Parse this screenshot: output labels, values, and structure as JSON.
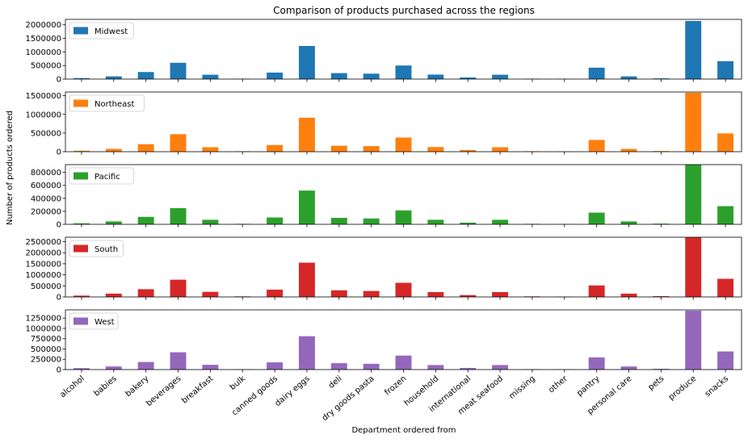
{
  "chart_data": {
    "type": "bar",
    "title": "Comparison of products purchased across the regions",
    "xlabel": "Department ordered from",
    "ylabel": "Number of products ordered",
    "legend_position": "top-left",
    "grid": false,
    "categories": [
      "alcohol",
      "babies",
      "bakery",
      "beverages",
      "breakfast",
      "bulk",
      "canned goods",
      "dairy eggs",
      "deli",
      "dry goods pasta",
      "frozen",
      "household",
      "international",
      "meat seafood",
      "missing",
      "other",
      "pantry",
      "personal care",
      "pets",
      "produce",
      "snacks"
    ],
    "series": [
      {
        "name": "Midwest",
        "color": "#1f77b4",
        "ylim": [
          0,
          2200000
        ],
        "yticks": [
          0,
          500000,
          1000000,
          1500000,
          2000000
        ],
        "values": [
          35000,
          100000,
          260000,
          600000,
          160000,
          15000,
          240000,
          1220000,
          220000,
          200000,
          500000,
          165000,
          60000,
          160000,
          15000,
          8000,
          420000,
          100000,
          25000,
          2140000,
          660000
        ]
      },
      {
        "name": "Northeast",
        "color": "#ff7f0e",
        "ylim": [
          0,
          1600000
        ],
        "yticks": [
          0,
          500000,
          1000000,
          1500000
        ],
        "values": [
          26000,
          75000,
          200000,
          470000,
          120000,
          12000,
          180000,
          910000,
          160000,
          150000,
          380000,
          125000,
          45000,
          120000,
          12000,
          6000,
          315000,
          75000,
          18000,
          1580000,
          490000
        ]
      },
      {
        "name": "Pacific",
        "color": "#2ca02c",
        "ylim": [
          0,
          920000
        ],
        "yticks": [
          0,
          200000,
          400000,
          600000,
          800000
        ],
        "values": [
          15000,
          45000,
          115000,
          250000,
          70000,
          7000,
          105000,
          520000,
          100000,
          90000,
          215000,
          70000,
          26000,
          70000,
          7000,
          4000,
          180000,
          45000,
          10000,
          920000,
          280000
        ]
      },
      {
        "name": "South",
        "color": "#d62728",
        "ylim": [
          0,
          2700000
        ],
        "yticks": [
          0,
          500000,
          1000000,
          1500000,
          2000000,
          2500000
        ],
        "values": [
          60000,
          150000,
          350000,
          780000,
          230000,
          25000,
          330000,
          1550000,
          300000,
          270000,
          640000,
          220000,
          85000,
          220000,
          25000,
          15000,
          520000,
          150000,
          35000,
          2690000,
          820000
        ]
      },
      {
        "name": "West",
        "color": "#9467bd",
        "ylim": [
          0,
          1450000
        ],
        "yticks": [
          0,
          250000,
          500000,
          750000,
          1000000,
          1250000
        ],
        "values": [
          35000,
          75000,
          185000,
          420000,
          115000,
          10000,
          175000,
          810000,
          155000,
          140000,
          340000,
          110000,
          40000,
          110000,
          10000,
          6000,
          295000,
          75000,
          18000,
          1430000,
          440000
        ]
      }
    ]
  }
}
